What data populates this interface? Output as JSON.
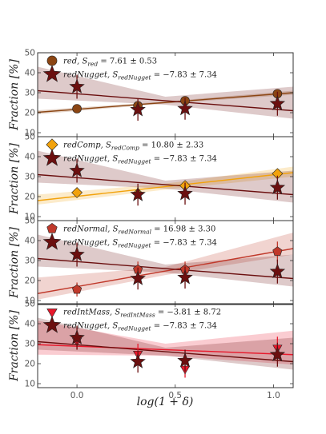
{
  "figure": {
    "ylabel": "Fraction [%]",
    "xlabel": "log(1 + δ)",
    "xlim": [
      -0.2,
      1.1
    ],
    "ylim": [
      8,
      50
    ],
    "x_ticks": [
      0.0,
      0.5,
      1.0
    ],
    "x_tick_labels": [
      "0.0",
      "0.5",
      "1.0"
    ],
    "y_ticks": [
      10,
      20,
      30,
      40,
      50
    ],
    "y_tick_labels": [
      "10",
      "20",
      "30",
      "40",
      "50"
    ]
  },
  "chart_data": [
    {
      "type": "scatter",
      "title": "",
      "xlabel": "",
      "ylabel": "Fraction [%]",
      "grid": false,
      "legend_position": "top-left",
      "series": [
        {
          "name": "red",
          "legend": "red, S_red = 7.61 ± 0.53",
          "marker": "circle",
          "color": "#8B4513",
          "x": [
            0.0,
            0.31,
            0.55,
            1.02
          ],
          "y": [
            22.0,
            23.5,
            26.0,
            29.5
          ],
          "yerr": [
            1.5,
            1.5,
            1.5,
            1.5
          ],
          "fit": {
            "x0": -0.2,
            "y0": 20.2,
            "x1": 1.1,
            "y1": 30.0,
            "band": [
              [
                0.5,
                1.0
              ],
              [
                1.0,
                1.0
              ]
            ]
          }
        },
        {
          "name": "redNugget",
          "legend": "redNugget, S_redNugget = −7.83 ± 7.34",
          "marker": "star",
          "color": "#6b0f0f",
          "x": [
            0.0,
            0.31,
            0.55,
            1.02
          ],
          "y": [
            33.0,
            21.5,
            22.0,
            24.5
          ],
          "yerr": [
            6.0,
            5.5,
            5.5,
            6.0
          ],
          "fit": {
            "x0": -0.2,
            "y0": 31.0,
            "x1": 1.1,
            "y1": 21.0,
            "band": [
              [
                2.0,
                5.0
              ],
              [
                4.0,
                12.0
              ]
            ]
          }
        }
      ]
    },
    {
      "type": "scatter",
      "title": "",
      "xlabel": "",
      "ylabel": "Fraction [%]",
      "grid": false,
      "legend_position": "top-left",
      "series": [
        {
          "name": "redComp",
          "legend": "redComp, S_redComp = 10.80 ± 2.33",
          "marker": "diamond",
          "color": "#f2a20c",
          "x": [
            0.0,
            0.31,
            0.55,
            1.02
          ],
          "y": [
            22.0,
            21.5,
            25.5,
            31.5
          ],
          "yerr": [
            1.5,
            1.5,
            1.5,
            2.0
          ],
          "fit": {
            "x0": -0.2,
            "y0": 18.0,
            "x1": 1.1,
            "y1": 32.0,
            "band": [
              [
                1.5,
                2.5
              ],
              [
                2.0,
                3.0
              ]
            ]
          }
        },
        {
          "name": "redNugget",
          "legend": "redNugget, S_redNugget = −7.83 ± 7.34",
          "marker": "star",
          "color": "#6b0f0f",
          "x": [
            0.0,
            0.31,
            0.55,
            1.02
          ],
          "y": [
            33.0,
            21.0,
            21.5,
            24.5
          ],
          "yerr": [
            6.0,
            5.5,
            5.5,
            6.0
          ],
          "fit": {
            "x0": -0.2,
            "y0": 31.0,
            "x1": 1.1,
            "y1": 21.0,
            "band": [
              [
                2.0,
                5.0
              ],
              [
                4.0,
                12.0
              ]
            ]
          }
        }
      ]
    },
    {
      "type": "scatter",
      "title": "",
      "xlabel": "",
      "ylabel": "Fraction [%]",
      "grid": false,
      "legend_position": "top-left",
      "series": [
        {
          "name": "redNormal",
          "legend": "redNormal, S_redNormal = 16.98 ± 3.30",
          "marker": "pentagon",
          "color": "#c0392b",
          "x": [
            0.0,
            0.31,
            0.55,
            1.02
          ],
          "y": [
            15.5,
            25.5,
            25.5,
            34.5
          ],
          "yerr": [
            3.5,
            4.0,
            4.0,
            5.0
          ],
          "fit": {
            "x0": -0.2,
            "y0": 13.5,
            "x1": 1.1,
            "y1": 36.0,
            "band": [
              [
                2.0,
                6.0
              ],
              [
                3.0,
                8.0
              ]
            ]
          }
        },
        {
          "name": "redNugget",
          "legend": "redNugget, S_redNugget = −7.83 ± 7.34",
          "marker": "star",
          "color": "#6b0f0f",
          "x": [
            0.0,
            0.31,
            0.55,
            1.02
          ],
          "y": [
            33.0,
            21.0,
            21.5,
            24.5
          ],
          "yerr": [
            6.0,
            5.5,
            5.5,
            6.0
          ],
          "fit": {
            "x0": -0.2,
            "y0": 31.0,
            "x1": 1.1,
            "y1": 21.0,
            "band": [
              [
                2.0,
                5.0
              ],
              [
                4.0,
                12.0
              ]
            ]
          }
        }
      ]
    },
    {
      "type": "scatter",
      "title": "",
      "xlabel": "log(1 + δ)",
      "ylabel": "Fraction [%]",
      "grid": false,
      "legend_position": "top-left",
      "series": [
        {
          "name": "redIntMass",
          "legend": "redIntMass, S_redIntMass = −3.81 ± 8.72",
          "marker": "triangle-down",
          "color": "#e8192c",
          "x": [
            0.0,
            0.31,
            0.55,
            1.02
          ],
          "y": [
            31.5,
            25.0,
            17.5,
            28.0
          ],
          "yerr": [
            4.5,
            5.0,
            4.5,
            5.5
          ],
          "fit": {
            "x0": -0.2,
            "y0": 29.5,
            "x1": 1.1,
            "y1": 24.5,
            "band": [
              [
                3.0,
                7.0
              ],
              [
                5.0,
                12.0
              ]
            ]
          }
        },
        {
          "name": "redNugget",
          "legend": "redNugget, S_redNugget = −7.83 ± 7.34",
          "marker": "star",
          "color": "#6b0f0f",
          "x": [
            0.0,
            0.31,
            0.55,
            1.02
          ],
          "y": [
            33.0,
            21.0,
            21.5,
            24.5
          ],
          "yerr": [
            6.0,
            5.5,
            5.5,
            6.0
          ],
          "fit": {
            "x0": -0.2,
            "y0": 31.0,
            "x1": 1.1,
            "y1": 21.0,
            "band": [
              [
                2.0,
                5.0
              ],
              [
                4.0,
                12.0
              ]
            ]
          }
        }
      ]
    }
  ],
  "legends": [
    [
      {
        "name": "red",
        "sub": "red",
        "value": " = 7.61 ± 0.53"
      },
      {
        "name": "redNugget",
        "sub": "redNugget",
        "value": " = −7.83 ± 7.34"
      }
    ],
    [
      {
        "name": "redComp",
        "sub": "redComp",
        "value": " = 10.80 ± 2.33"
      },
      {
        "name": "redNugget",
        "sub": "redNugget",
        "value": " = −7.83 ± 7.34"
      }
    ],
    [
      {
        "name": "redNormal",
        "sub": "redNormal",
        "value": " = 16.98 ± 3.30"
      },
      {
        "name": "redNugget",
        "sub": "redNugget",
        "value": " = −7.83 ± 7.34"
      }
    ],
    [
      {
        "name": "redIntMass",
        "sub": "redIntMass",
        "value": " = −3.81 ± 8.72"
      },
      {
        "name": "redNugget",
        "sub": "redNugget",
        "value": " = −7.83 ± 7.34"
      }
    ]
  ]
}
